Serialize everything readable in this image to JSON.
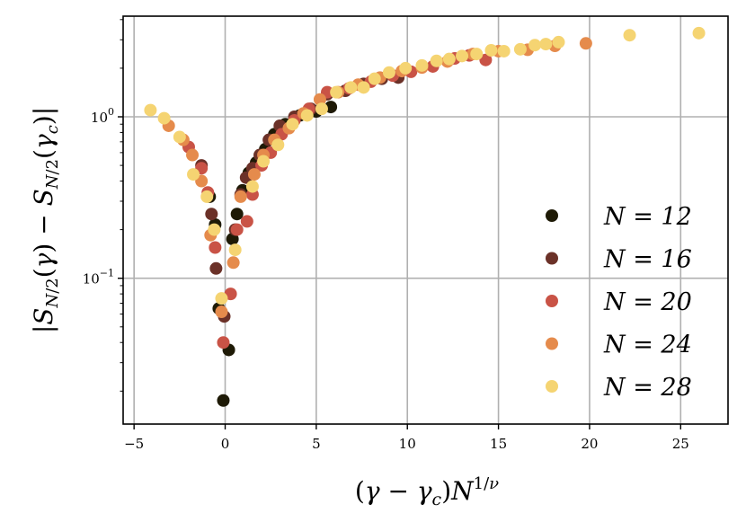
{
  "chart_data": {
    "type": "scatter",
    "title": "",
    "xlabel": "(γ − γ_c)N^{1/ν}",
    "ylabel": "|S_{N/2}(γ) − S_{N/2}(γ_c)|",
    "xscale": "linear",
    "yscale": "log",
    "xlim": [
      -5.6,
      27.6
    ],
    "ylim": [
      0.0125,
      4.2
    ],
    "xticks": [
      -5,
      0,
      5,
      10,
      15,
      20,
      25
    ],
    "xtick_labels": [
      "−5",
      "0",
      "5",
      "10",
      "15",
      "20",
      "25"
    ],
    "yticks": [
      0.1,
      1.0
    ],
    "grid": true,
    "legend_position": "right",
    "series": [
      {
        "name": "N = 12",
        "legend_label": "N = 12",
        "color": "#1e1a06",
        "points": [
          [
            -0.85,
            0.32
          ],
          [
            -0.55,
            0.215
          ],
          [
            -0.35,
            0.065
          ],
          [
            -0.1,
            0.0175
          ],
          [
            0.2,
            0.036
          ],
          [
            0.4,
            0.175
          ],
          [
            0.65,
            0.25
          ],
          [
            0.95,
            0.35
          ],
          [
            1.3,
            0.45
          ],
          [
            1.7,
            0.52
          ],
          [
            2.2,
            0.63
          ],
          [
            2.7,
            0.78
          ],
          [
            3.3,
            0.9
          ],
          [
            4.1,
            1.02
          ],
          [
            5.0,
            1.08
          ],
          [
            5.8,
            1.15
          ]
        ]
      },
      {
        "name": "N = 16",
        "legend_label": "N = 16",
        "color": "#6b3128",
        "points": [
          [
            -1.3,
            0.5
          ],
          [
            -0.75,
            0.25
          ],
          [
            -0.5,
            0.115
          ],
          [
            -0.05,
            0.058
          ],
          [
            0.55,
            0.2
          ],
          [
            0.85,
            0.33
          ],
          [
            1.15,
            0.42
          ],
          [
            1.5,
            0.48
          ],
          [
            1.9,
            0.58
          ],
          [
            2.4,
            0.72
          ],
          [
            3.0,
            0.88
          ],
          [
            3.8,
            1.0
          ],
          [
            4.7,
            1.12
          ],
          [
            5.6,
            1.38
          ],
          [
            6.6,
            1.45
          ],
          [
            7.6,
            1.6
          ],
          [
            8.6,
            1.72
          ],
          [
            9.5,
            1.75
          ]
        ]
      },
      {
        "name": "N = 20",
        "legend_label": "N = 20",
        "color": "#c95346",
        "points": [
          [
            -2.0,
            0.65
          ],
          [
            -1.3,
            0.48
          ],
          [
            -0.95,
            0.34
          ],
          [
            -0.55,
            0.155
          ],
          [
            -0.1,
            0.04
          ],
          [
            0.3,
            0.08
          ],
          [
            0.65,
            0.2
          ],
          [
            1.2,
            0.225
          ],
          [
            1.5,
            0.33
          ],
          [
            2.0,
            0.5
          ],
          [
            2.5,
            0.6
          ],
          [
            3.1,
            0.78
          ],
          [
            3.8,
            0.95
          ],
          [
            4.6,
            1.12
          ],
          [
            5.6,
            1.42
          ],
          [
            6.8,
            1.5
          ],
          [
            8.0,
            1.65
          ],
          [
            9.2,
            1.8
          ],
          [
            10.2,
            1.9
          ],
          [
            11.4,
            2.05
          ],
          [
            12.6,
            2.3
          ],
          [
            13.4,
            2.4
          ],
          [
            14.3,
            2.25
          ]
        ]
      },
      {
        "name": "N = 24",
        "legend_label": "N = 24",
        "color": "#e58b4c",
        "points": [
          [
            -3.1,
            0.88
          ],
          [
            -2.3,
            0.72
          ],
          [
            -1.8,
            0.58
          ],
          [
            -1.3,
            0.4
          ],
          [
            -0.8,
            0.185
          ],
          [
            -0.2,
            0.062
          ],
          [
            0.45,
            0.125
          ],
          [
            0.85,
            0.32
          ],
          [
            1.6,
            0.44
          ],
          [
            2.1,
            0.58
          ],
          [
            2.7,
            0.72
          ],
          [
            3.5,
            0.85
          ],
          [
            4.3,
            1.05
          ],
          [
            5.2,
            1.28
          ],
          [
            6.2,
            1.42
          ],
          [
            7.3,
            1.58
          ],
          [
            8.5,
            1.75
          ],
          [
            9.7,
            1.92
          ],
          [
            10.8,
            2.02
          ],
          [
            12.2,
            2.2
          ],
          [
            13.6,
            2.45
          ],
          [
            15.0,
            2.55
          ],
          [
            16.6,
            2.6
          ],
          [
            18.1,
            2.75
          ],
          [
            19.8,
            2.85
          ]
        ]
      },
      {
        "name": "N = 28",
        "legend_label": "N = 28",
        "color": "#f5d472",
        "points": [
          [
            -4.1,
            1.1
          ],
          [
            -3.35,
            0.98
          ],
          [
            -2.5,
            0.75
          ],
          [
            -1.75,
            0.44
          ],
          [
            -1.0,
            0.32
          ],
          [
            -0.6,
            0.2
          ],
          [
            -0.2,
            0.075
          ],
          [
            0.55,
            0.15
          ],
          [
            1.5,
            0.37
          ],
          [
            2.1,
            0.53
          ],
          [
            2.9,
            0.67
          ],
          [
            3.7,
            0.9
          ],
          [
            4.5,
            1.02
          ],
          [
            5.3,
            1.12
          ],
          [
            6.1,
            1.42
          ],
          [
            6.9,
            1.52
          ],
          [
            7.6,
            1.52
          ],
          [
            8.2,
            1.72
          ],
          [
            9.0,
            1.88
          ],
          [
            9.9,
            2.0
          ],
          [
            10.8,
            2.08
          ],
          [
            11.6,
            2.22
          ],
          [
            12.3,
            2.28
          ],
          [
            13.0,
            2.38
          ],
          [
            13.8,
            2.45
          ],
          [
            14.6,
            2.58
          ],
          [
            15.3,
            2.55
          ],
          [
            16.2,
            2.62
          ],
          [
            17.0,
            2.78
          ],
          [
            17.6,
            2.82
          ],
          [
            18.3,
            2.9
          ],
          [
            22.2,
            3.2
          ],
          [
            26.0,
            3.3
          ]
        ]
      }
    ]
  }
}
